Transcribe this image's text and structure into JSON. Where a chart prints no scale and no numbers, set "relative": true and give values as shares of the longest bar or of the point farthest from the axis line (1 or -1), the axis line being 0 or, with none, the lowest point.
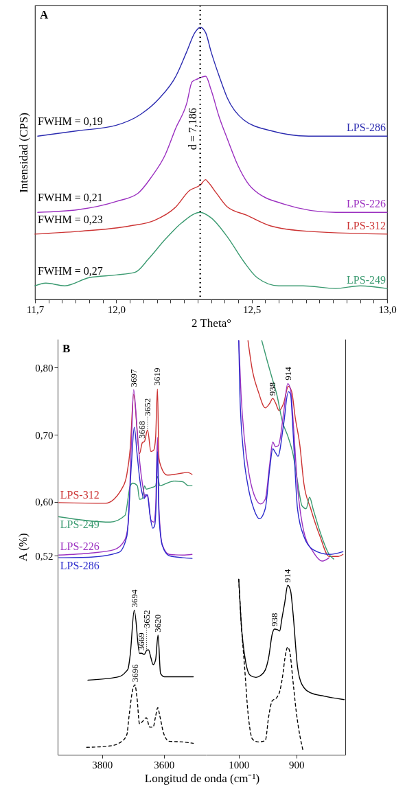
{
  "chart_data": [
    {
      "type": "line",
      "title": "A",
      "xlabel": "2 Theta°",
      "ylabel": "Intensidad (CPS)",
      "relative": true,
      "grid": false,
      "xlim": [
        11.7,
        13.0
      ],
      "xticks": [
        {
          "value": 11.7,
          "label": "11,7"
        },
        {
          "value": 11.75,
          "label": null
        },
        {
          "value": 11.8,
          "label": null
        },
        {
          "value": 11.85,
          "label": null
        },
        {
          "value": 11.9,
          "label": null
        },
        {
          "value": 11.95,
          "label": null
        },
        {
          "value": 12.0,
          "label": "12,0"
        },
        {
          "value": 12.05,
          "label": null
        },
        {
          "value": 12.1,
          "label": null
        },
        {
          "value": 12.15,
          "label": null
        },
        {
          "value": 12.2,
          "label": null
        },
        {
          "value": 12.25,
          "label": null
        },
        {
          "value": 12.3,
          "label": null
        },
        {
          "value": 12.35,
          "label": null
        },
        {
          "value": 12.4,
          "label": null
        },
        {
          "value": 12.45,
          "label": null
        },
        {
          "value": 12.5,
          "label": "12,5"
        },
        {
          "value": 12.55,
          "label": null
        },
        {
          "value": 12.6,
          "label": null
        },
        {
          "value": 12.65,
          "label": null
        },
        {
          "value": 12.7,
          "label": null
        },
        {
          "value": 12.75,
          "label": null
        },
        {
          "value": 12.8,
          "label": null
        },
        {
          "value": 12.85,
          "label": null
        },
        {
          "value": 12.9,
          "label": null
        },
        {
          "value": 12.95,
          "label": null
        },
        {
          "value": 13.0,
          "label": "13,0"
        }
      ],
      "series": [
        {
          "name": "LPS-286",
          "color": "#2b2bb0",
          "x": [
            11.71,
            11.86,
            12.0,
            12.09,
            12.16,
            12.22,
            12.26,
            12.29,
            12.31,
            12.33,
            12.35,
            12.38,
            12.41,
            12.47,
            12.57,
            12.71,
            12.86,
            13.0
          ],
          "values": [
            0.6,
            0.62,
            0.64,
            0.68,
            0.74,
            0.82,
            0.91,
            0.98,
            1.0,
            0.98,
            0.91,
            0.82,
            0.74,
            0.66,
            0.62,
            0.6,
            0.6,
            0.6
          ]
        },
        {
          "name": "LPS-226",
          "color": "#9b30c0",
          "x": [
            11.71,
            11.86,
            12.0,
            12.08,
            12.13,
            12.18,
            12.22,
            12.26,
            12.28,
            12.3,
            12.33,
            12.35,
            12.38,
            12.41,
            12.45,
            12.5,
            12.62,
            12.81,
            13.0
          ],
          "values": [
            0.32,
            0.33,
            0.36,
            0.39,
            0.45,
            0.53,
            0.63,
            0.72,
            0.8,
            0.81,
            0.82,
            0.77,
            0.67,
            0.59,
            0.49,
            0.41,
            0.35,
            0.32,
            0.32
          ]
        },
        {
          "name": "LPS-312",
          "color": "#cc3333",
          "x": [
            11.7,
            11.86,
            12.05,
            12.14,
            12.22,
            12.27,
            12.31,
            12.33,
            12.34,
            12.37,
            12.41,
            12.48,
            12.57,
            12.71,
            13.0
          ],
          "values": [
            0.24,
            0.25,
            0.27,
            0.29,
            0.34,
            0.4,
            0.42,
            0.44,
            0.43,
            0.39,
            0.34,
            0.31,
            0.27,
            0.25,
            0.24
          ]
        },
        {
          "name": "LPS-249",
          "color": "#3a9a70",
          "x": [
            11.7,
            11.74,
            11.81,
            11.9,
            12.0,
            12.07,
            12.12,
            12.18,
            12.24,
            12.31,
            12.35,
            12.41,
            12.47,
            12.52,
            12.6,
            12.69,
            12.81,
            12.9,
            13.0
          ],
          "values": [
            0.05,
            0.06,
            0.05,
            0.08,
            0.09,
            0.1,
            0.15,
            0.22,
            0.28,
            0.32,
            0.3,
            0.23,
            0.14,
            0.08,
            0.05,
            0.05,
            0.04,
            0.05,
            0.04
          ]
        }
      ],
      "ref_lines": [
        {
          "axis": "x",
          "value": 12.31,
          "line_style": "dotted",
          "color": "#000000"
        }
      ],
      "annotations": [
        "FWHM = 0,19",
        "FWHM = 0,21",
        "FWHM = 0,23",
        "FWHM = 0,27",
        "d = 7,186"
      ]
    },
    {
      "type": "line",
      "title": "B",
      "xlabel": "Longitud de onda (cm⁻¹)",
      "ylabel": "A (%)",
      "grid": false,
      "xlim": [
        3944,
        3464
      ],
      "xticks": [
        3800,
        3600
      ],
      "ylim": [
        0.224,
        0.842
      ],
      "yticks": [
        {
          "value": 0.52,
          "label": "0,52"
        },
        {
          "value": 0.6,
          "label": "0,60"
        },
        {
          "value": 0.7,
          "label": "0,70"
        },
        {
          "value": 0.8,
          "label": "0,80"
        }
      ],
      "series": [
        {
          "name": "LPS-312",
          "color": "#cc3333",
          "x": [
            3940,
            3790,
            3731,
            3720,
            3709,
            3698,
            3679,
            3670,
            3663,
            3653,
            3642,
            3633,
            3627,
            3621,
            3616,
            3609,
            3590,
            3539,
            3524,
            3509
          ],
          "values": [
            0.599,
            0.598,
            0.624,
            0.641,
            0.68,
            0.76,
            0.672,
            0.688,
            0.69,
            0.707,
            0.675,
            0.677,
            0.695,
            0.768,
            0.665,
            0.652,
            0.64,
            0.643,
            0.644,
            0.641
          ]
        },
        {
          "name": "LPS-249",
          "color": "#3a9a70",
          "x": [
            3940,
            3774,
            3726,
            3709,
            3701,
            3686,
            3679,
            3670,
            3663,
            3657,
            3642,
            3627,
            3621,
            3613,
            3590,
            3568,
            3539,
            3520,
            3509
          ],
          "values": [
            0.578,
            0.57,
            0.58,
            0.624,
            0.628,
            0.624,
            0.604,
            0.605,
            0.624,
            0.619,
            0.621,
            0.624,
            0.638,
            0.624,
            0.628,
            0.631,
            0.63,
            0.624,
            0.624
          ]
        },
        {
          "name": "LPS-226",
          "color": "#9b30c0",
          "x": [
            3940,
            3835,
            3761,
            3727,
            3716,
            3705,
            3698,
            3687,
            3678,
            3670,
            3666,
            3661,
            3653,
            3642,
            3633,
            3627,
            3621,
            3616,
            3605,
            3583,
            3539,
            3509
          ],
          "values": [
            0.521,
            0.524,
            0.529,
            0.543,
            0.566,
            0.692,
            0.767,
            0.709,
            0.658,
            0.628,
            0.617,
            0.607,
            0.611,
            0.573,
            0.57,
            0.59,
            0.696,
            0.59,
            0.536,
            0.522,
            0.521,
            0.522
          ]
        },
        {
          "name": "LPS-286",
          "color": "#2b2bcc",
          "x": [
            3940,
            3835,
            3746,
            3720,
            3705,
            3696,
            3687,
            3678,
            3670,
            3664,
            3659,
            3653,
            3645,
            3636,
            3630,
            3625,
            3621,
            3616,
            3605,
            3583,
            3539,
            3509
          ],
          "values": [
            0.517,
            0.518,
            0.525,
            0.549,
            0.658,
            0.711,
            0.672,
            0.633,
            0.612,
            0.605,
            0.611,
            0.609,
            0.58,
            0.561,
            0.565,
            0.6,
            0.675,
            0.58,
            0.535,
            0.52,
            0.517,
            0.516
          ]
        },
        {
          "color": "#000000",
          "x": [
            3846,
            3790,
            3746,
            3724,
            3716,
            3709,
            3696,
            3679,
            3672,
            3664,
            3656,
            3650,
            3642,
            3635,
            3627,
            3619,
            3611,
            3598,
            3568,
            3505
          ],
          "values": [
            0.335,
            0.337,
            0.34,
            0.347,
            0.352,
            0.373,
            0.439,
            0.375,
            0.375,
            0.373,
            0.379,
            0.38,
            0.368,
            0.358,
            0.365,
            0.402,
            0.345,
            0.34,
            0.34,
            0.34
          ]
        },
        {
          "color": "#000000",
          "line_style": "dashed",
          "x": [
            3850,
            3776,
            3739,
            3720,
            3713,
            3701,
            3694,
            3687,
            3679,
            3668,
            3657,
            3646,
            3635,
            3627,
            3620,
            3613,
            3601,
            3583,
            3539,
            3505
          ],
          "values": [
            0.235,
            0.237,
            0.243,
            0.254,
            0.281,
            0.321,
            0.328,
            0.308,
            0.27,
            0.274,
            0.279,
            0.265,
            0.265,
            0.281,
            0.294,
            0.281,
            0.256,
            0.244,
            0.243,
            0.241
          ]
        }
      ],
      "annotations": [
        {
          "text": "3697",
          "x": 3698,
          "y": 0.767
        },
        {
          "text": "3668",
          "x": 3670,
          "y": 0.69
        },
        {
          "text": "3652",
          "x": 3653,
          "y": 0.707
        },
        {
          "text": "3619",
          "x": 3621,
          "y": 0.769
        },
        {
          "text": "3694",
          "x": 3696,
          "y": 0.439
        },
        {
          "text": "3669",
          "x": 3672,
          "y": 0.375
        },
        {
          "text": "3652",
          "x": 3656,
          "y": 0.379
        },
        {
          "text": "3620",
          "x": 3619,
          "y": 0.402
        },
        {
          "text": "3696",
          "x": 3694,
          "y": 0.328
        }
      ]
    },
    {
      "type": "line",
      "grid": false,
      "tick_labels": "x",
      "xlim": [
        1057,
        815
      ],
      "xticks": [
        1000,
        900
      ],
      "ylim": [
        0.224,
        0.842
      ],
      "series": [
        {
          "color": "#cc3333",
          "x": [
            984,
            976,
            966,
            954,
            946,
            941,
            936,
            930,
            922,
            914,
            908,
            902,
            894,
            887,
            875,
            859,
            843,
            827,
            819
          ],
          "values": [
            0.84,
            0.794,
            0.764,
            0.74,
            0.747,
            0.754,
            0.747,
            0.736,
            0.747,
            0.772,
            0.764,
            0.726,
            0.685,
            0.628,
            0.59,
            0.549,
            0.519,
            0.519,
            0.522
          ]
        },
        {
          "color": "#3a9a70",
          "x": [
            960,
            950,
            942,
            934,
            924,
            914,
            906,
            898,
            890,
            883,
            877,
            871,
            859,
            843,
            835
          ],
          "values": [
            0.84,
            0.808,
            0.784,
            0.76,
            0.719,
            0.696,
            0.672,
            0.631,
            0.594,
            0.59,
            0.607,
            0.59,
            0.556,
            0.522,
            0.515
          ]
        },
        {
          "color": "#9b30c0",
          "x": [
            1000,
            996,
            990,
            982,
            970,
            962,
            954,
            946,
            941,
            936,
            931,
            922,
            915,
            910,
            906,
            898,
            887,
            871,
            855,
            843
          ],
          "values": [
            0.84,
            0.76,
            0.692,
            0.641,
            0.604,
            0.597,
            0.604,
            0.658,
            0.689,
            0.682,
            0.684,
            0.733,
            0.776,
            0.767,
            0.726,
            0.624,
            0.556,
            0.526,
            0.512,
            0.517
          ]
        },
        {
          "color": "#2b2bcc",
          "x": [
            1000,
            998,
            992,
            984,
            974,
            964,
            954,
            946,
            941,
            936,
            932,
            922,
            914,
            910,
            906,
            898,
            887,
            871,
            843,
            819
          ],
          "values": [
            0.84,
            0.76,
            0.675,
            0.624,
            0.59,
            0.575,
            0.59,
            0.651,
            0.679,
            0.673,
            0.668,
            0.716,
            0.764,
            0.76,
            0.709,
            0.59,
            0.549,
            0.529,
            0.522,
            0.526
          ]
        },
        {
          "color": "#000000",
          "x": [
            1000,
            996,
            988,
            980,
            970,
            962,
            954,
            948,
            942,
            938,
            933,
            929,
            925,
            920,
            915,
            910,
            906,
            898,
            890,
            875,
            851,
            817
          ],
          "values": [
            0.485,
            0.423,
            0.362,
            0.342,
            0.339,
            0.342,
            0.35,
            0.369,
            0.403,
            0.411,
            0.41,
            0.408,
            0.427,
            0.451,
            0.476,
            0.468,
            0.437,
            0.355,
            0.328,
            0.316,
            0.311,
            0.306
          ]
        },
        {
          "color": "#000000",
          "line_style": "dashed",
          "x": [
            1000,
            996,
            990,
            984,
            976,
            966,
            954,
            948,
            942,
            934,
            928,
            924,
            919,
            915,
            911,
            906,
            900,
            894,
            888
          ],
          "values": [
            0.485,
            0.423,
            0.356,
            0.287,
            0.247,
            0.243,
            0.245,
            0.281,
            0.304,
            0.309,
            0.321,
            0.34,
            0.372,
            0.384,
            0.375,
            0.335,
            0.287,
            0.253,
            0.229
          ]
        }
      ],
      "annotations": [
        {
          "text": "938",
          "x": 941,
          "y": 0.754
        },
        {
          "text": "914",
          "x": 914,
          "y": 0.777
        },
        {
          "text": "938",
          "x": 938,
          "y": 0.411
        },
        {
          "text": "914",
          "x": 915,
          "y": 0.476
        }
      ]
    }
  ]
}
